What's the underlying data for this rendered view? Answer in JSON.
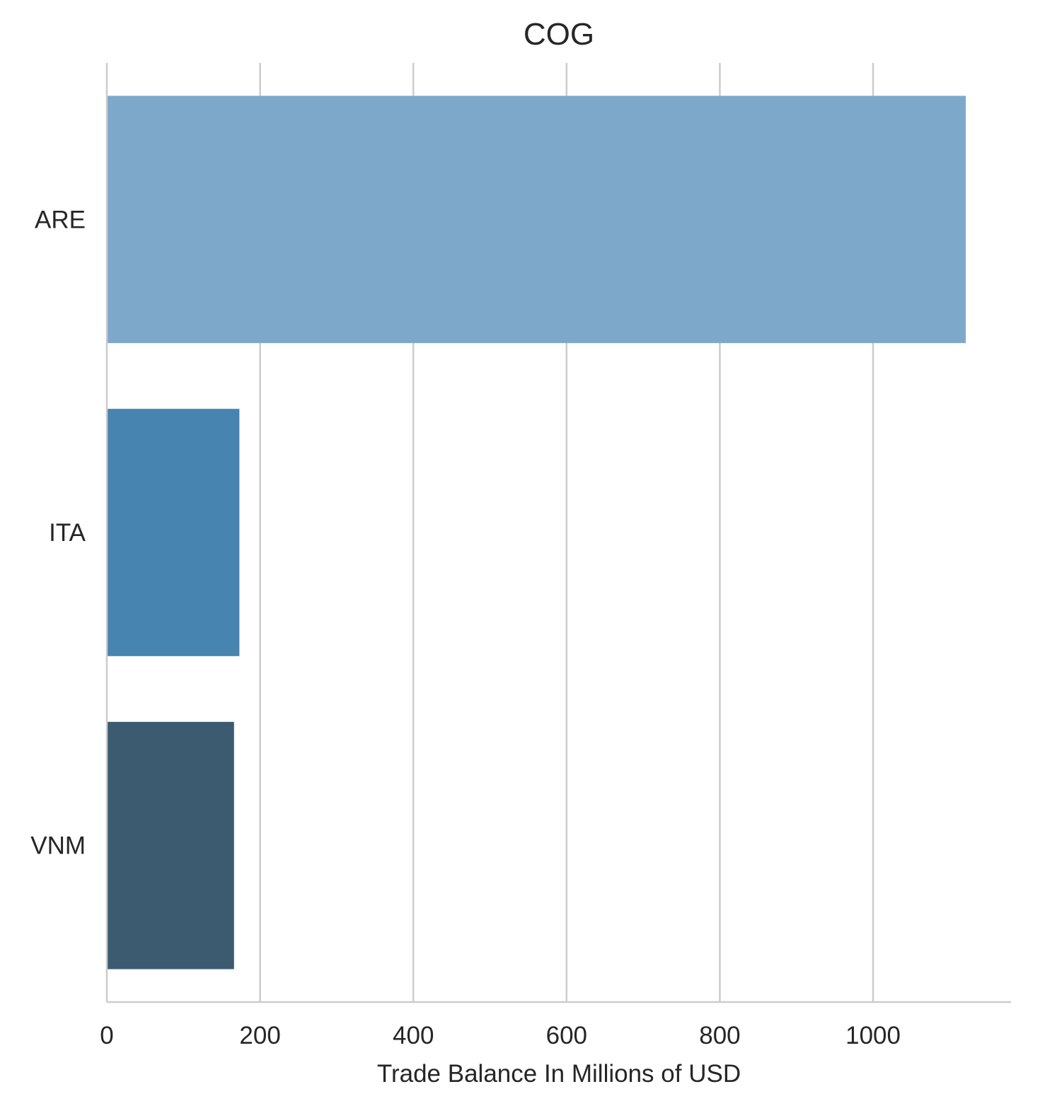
{
  "chart_data": {
    "type": "bar",
    "orientation": "horizontal",
    "title": "COG",
    "xlabel": "Trade Balance In Millions of USD",
    "ylabel": "",
    "categories": [
      "ARE",
      "ITA",
      "VNM"
    ],
    "values": [
      1121,
      173,
      166
    ],
    "colors": [
      "#7ea8c9",
      "#4884b0",
      "#3c5b71"
    ],
    "xlim": [
      0,
      1180
    ],
    "xticks": [
      0,
      200,
      400,
      600,
      800,
      1000
    ],
    "xtick_labels": [
      "0",
      "200",
      "400",
      "600",
      "800",
      "1000"
    ],
    "grid": "vertical",
    "legend": "none"
  }
}
